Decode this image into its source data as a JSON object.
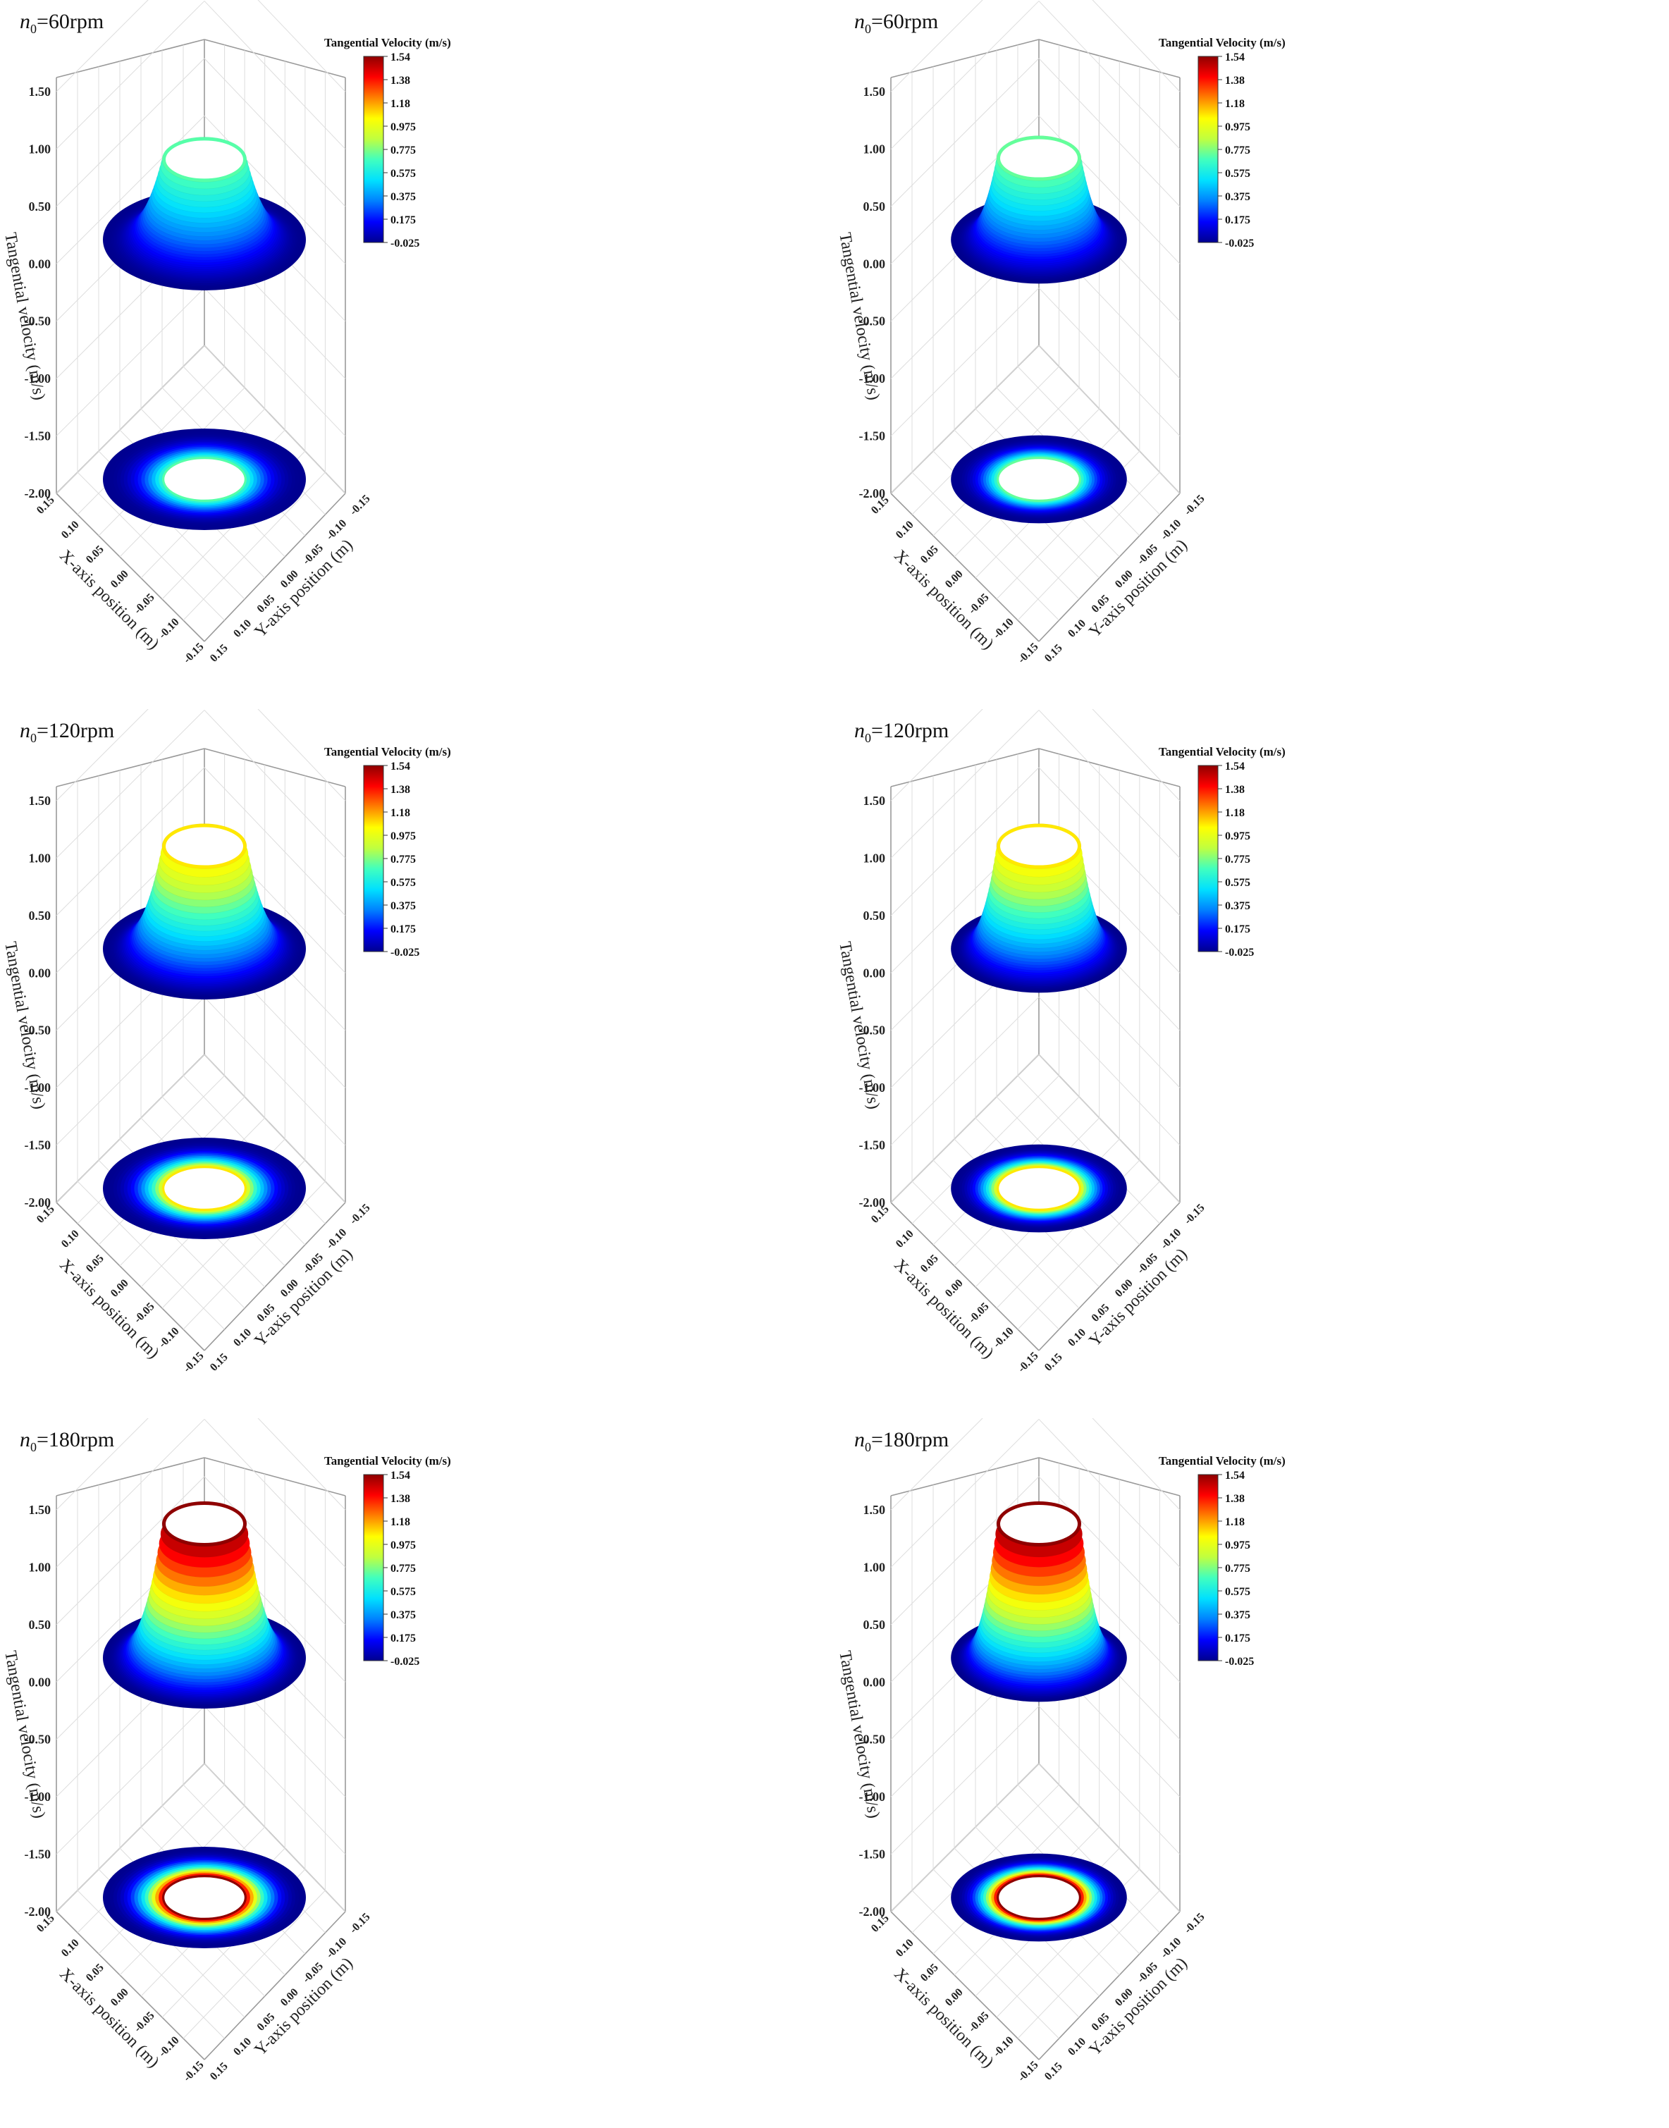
{
  "figure": {
    "panels": [
      {
        "id": "a",
        "speed_prefix": "n",
        "speed_subscript": "0",
        "speed_value": "=60rpm",
        "variant": "wide"
      },
      {
        "id": "b",
        "speed_prefix": "n",
        "speed_subscript": "0",
        "speed_value": "=60rpm",
        "variant": "narrow"
      },
      {
        "id": "c",
        "speed_prefix": "n",
        "speed_subscript": "0",
        "speed_value": "=120rpm",
        "variant": "wide"
      },
      {
        "id": "d",
        "speed_prefix": "n",
        "speed_subscript": "0",
        "speed_value": "=120rpm",
        "variant": "narrow"
      },
      {
        "id": "e",
        "speed_prefix": "n",
        "speed_subscript": "0",
        "speed_value": "=180rpm",
        "variant": "wide"
      },
      {
        "id": "f",
        "speed_prefix": "n",
        "speed_subscript": "0",
        "speed_value": "=180rpm",
        "variant": "narrow"
      }
    ]
  },
  "chart_data": {
    "type": "surface3d",
    "colorbar": {
      "title": "Tangential Velocity (m/s)",
      "ticks": [
        "1.54",
        "1.38",
        "1.18",
        "0.975",
        "0.775",
        "0.575",
        "0.375",
        "0.175",
        "-0.025"
      ],
      "range": [
        -0.025,
        1.54
      ],
      "colormap": [
        "#00008f",
        "#0000ff",
        "#0080ff",
        "#00e0ff",
        "#40ffbf",
        "#bfff40",
        "#ffff00",
        "#ff8000",
        "#ff0000",
        "#8f0000"
      ]
    },
    "zaxis": {
      "label": "Tangential velocity (m/s)",
      "ticks": [
        "1.50",
        "1.00",
        "0.50",
        "0.00",
        "-0.50",
        "-1.00",
        "-1.50",
        "-2.00"
      ],
      "range": [
        -2.0,
        1.75
      ]
    },
    "xaxis": {
      "label": "X-axis position (m)",
      "ticks": [
        "0.15",
        "0.10",
        "0.05",
        "0.00",
        "-0.05",
        "-0.10",
        "-0.15"
      ],
      "range": [
        0.15,
        -0.15
      ]
    },
    "yaxis": {
      "label": "Y-axis position (m)",
      "ticks": [
        "-0.15",
        "-0.10",
        "-0.05",
        "0.00",
        "0.05",
        "0.10",
        "0.15"
      ],
      "range": [
        -0.15,
        0.15
      ]
    },
    "series": [
      {
        "speed_rpm": 60,
        "ring_outer_radius": 0.15,
        "peak_velocity": 0.7
      },
      {
        "speed_rpm": 60,
        "ring_outer_radius": 0.13,
        "peak_velocity": 0.72
      },
      {
        "speed_rpm": 120,
        "ring_outer_radius": 0.15,
        "peak_velocity": 1.05
      },
      {
        "speed_rpm": 120,
        "ring_outer_radius": 0.13,
        "peak_velocity": 1.05
      },
      {
        "speed_rpm": 180,
        "ring_outer_radius": 0.15,
        "peak_velocity": 1.54
      },
      {
        "speed_rpm": 180,
        "ring_outer_radius": 0.13,
        "peak_velocity": 1.54
      }
    ]
  }
}
